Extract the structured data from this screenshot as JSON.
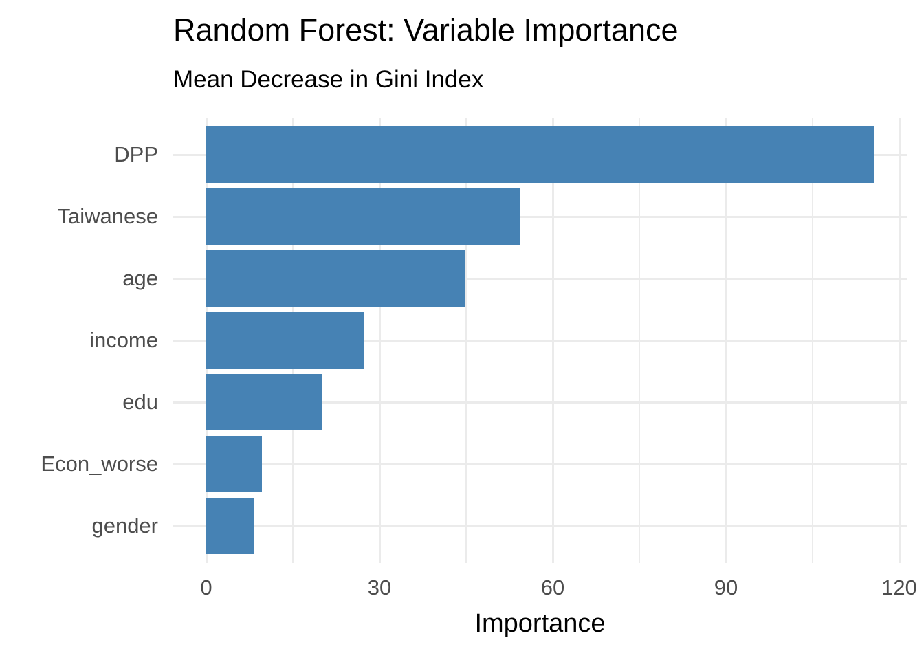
{
  "chart_data": {
    "type": "bar",
    "orientation": "horizontal",
    "title": "Random Forest: Variable Importance",
    "subtitle": "Mean Decrease in Gini Index",
    "xlabel": "Importance",
    "ylabel": "",
    "categories": [
      "DPP",
      "Taiwanese",
      "age",
      "income",
      "edu",
      "Econ_worse",
      "gender"
    ],
    "values": [
      115.6,
      54.3,
      44.9,
      27.4,
      20.1,
      9.6,
      8.3
    ],
    "xlim": [
      0,
      120
    ],
    "x_ticks": [
      0,
      30,
      60,
      90,
      120
    ],
    "x_minor_ticks": [
      15,
      45,
      75,
      105
    ],
    "grid": "on",
    "legend_position": "none",
    "colors": {
      "bar": "#4682B4",
      "grid_major": "#ebebeb",
      "grid_minor": "#ebebeb",
      "tick_label": "#4d4d4d",
      "title_text": "#000000",
      "background": "#ffffff"
    }
  }
}
